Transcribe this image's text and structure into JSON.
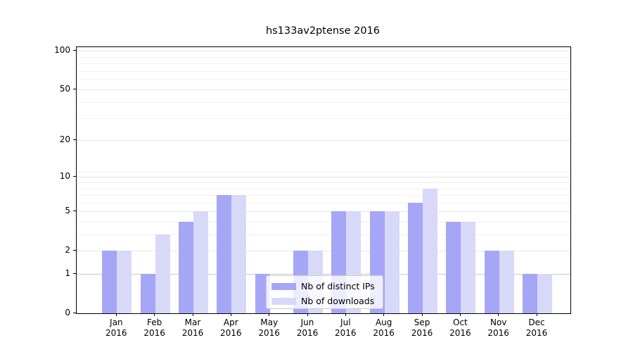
{
  "title": "hs133av2ptense 2016",
  "chart_data": {
    "type": "bar",
    "categories": [
      "Jan",
      "Feb",
      "Mar",
      "Apr",
      "May",
      "Jun",
      "Jul",
      "Aug",
      "Sep",
      "Oct",
      "Nov",
      "Dec"
    ],
    "year": "2016",
    "series": [
      {
        "name": "Nb of distinct IPs",
        "color": "#a6a6f7",
        "values": [
          2,
          1,
          4,
          7,
          1,
          2,
          5,
          5,
          6,
          4,
          2,
          1
        ]
      },
      {
        "name": "Nb of downloads",
        "color": "#d8d8f8",
        "values": [
          2,
          3,
          5,
          7,
          0,
          2,
          5,
          5,
          8,
          4,
          2,
          1
        ]
      }
    ],
    "title": "hs133av2ptense 2016",
    "xlabel": "",
    "ylabel": "",
    "yscale": "log1p",
    "ylim": [
      0,
      109
    ],
    "yticks": [
      100,
      50,
      20,
      10,
      5,
      2,
      1,
      0
    ],
    "yticks_minor": [
      3,
      4,
      6,
      7,
      8,
      9,
      11,
      30,
      40,
      60,
      70,
      80,
      90
    ],
    "grid": true,
    "legend_position": "lower center"
  },
  "legend": {
    "items": [
      "Nb of distinct IPs",
      "Nb of downloads"
    ]
  },
  "colors": {
    "bar_dark": "#a6a6f7",
    "bar_light": "#d8d8f8",
    "grid_minor": "#f0f0f0",
    "grid_major": "#e7e7e7",
    "axis": "#000000"
  }
}
